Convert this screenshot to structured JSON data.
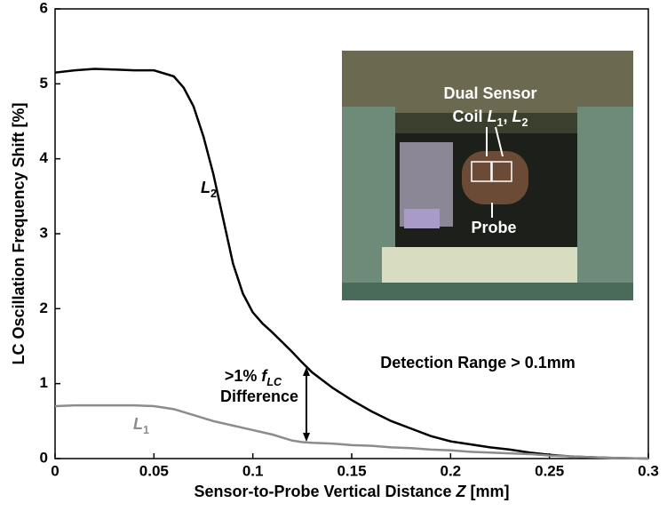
{
  "chart_data": {
    "type": "line",
    "xlabel": [
      {
        "text": "Sensor-to-Probe Vertical Distance "
      },
      {
        "text": "Z",
        "style": "italic"
      },
      {
        "text": " [mm]"
      }
    ],
    "ylabel": "LC Oscillation Frequency Shift [%]",
    "x": [
      0,
      0.01,
      0.02,
      0.03,
      0.04,
      0.05,
      0.06,
      0.065,
      0.07,
      0.075,
      0.08,
      0.085,
      0.09,
      0.095,
      0.1,
      0.105,
      0.11,
      0.115,
      0.12,
      0.125,
      0.13,
      0.14,
      0.15,
      0.16,
      0.17,
      0.18,
      0.19,
      0.2,
      0.21,
      0.22,
      0.23,
      0.24,
      0.25,
      0.26,
      0.27,
      0.28,
      0.29,
      0.3
    ],
    "series": [
      {
        "name": [
          {
            "text": "L",
            "style": "italic"
          },
          {
            "text": "2",
            "style": "sub"
          }
        ],
        "color": "#000000",
        "values": [
          5.15,
          5.18,
          5.2,
          5.19,
          5.18,
          5.18,
          5.1,
          4.95,
          4.7,
          4.3,
          3.8,
          3.2,
          2.6,
          2.2,
          1.95,
          1.8,
          1.68,
          1.55,
          1.42,
          1.28,
          1.15,
          0.95,
          0.78,
          0.63,
          0.5,
          0.4,
          0.3,
          0.23,
          0.19,
          0.15,
          0.12,
          0.08,
          0.05,
          0.03,
          0.02,
          0.01,
          0.005,
          0
        ]
      },
      {
        "name": [
          {
            "text": "L",
            "style": "italic"
          },
          {
            "text": "1",
            "style": "sub"
          }
        ],
        "color": "#8c8c8c",
        "values": [
          0.7,
          0.71,
          0.71,
          0.71,
          0.71,
          0.7,
          0.66,
          0.62,
          0.58,
          0.54,
          0.5,
          0.47,
          0.44,
          0.41,
          0.38,
          0.35,
          0.32,
          0.28,
          0.24,
          0.22,
          0.21,
          0.2,
          0.18,
          0.17,
          0.15,
          0.14,
          0.12,
          0.11,
          0.09,
          0.08,
          0.07,
          0.06,
          0.04,
          0.03,
          0.02,
          0.01,
          0.005,
          0
        ]
      }
    ],
    "xlim": [
      0,
      0.3
    ],
    "ylim": [
      0,
      6
    ],
    "xticks": [
      0,
      0.05,
      0.1,
      0.15,
      0.2,
      0.25,
      0.3
    ],
    "yticks": [
      0,
      1,
      2,
      3,
      4,
      5,
      6
    ],
    "annotations": [
      [
        {
          "text": ">1% "
        },
        {
          "text": "f",
          "style": "italic"
        },
        {
          "text": "LC",
          "style": "sub-italic"
        }
      ],
      [
        {
          "text": "Difference"
        }
      ],
      [
        {
          "text": "Detection Range > 0.1mm"
        }
      ]
    ],
    "inset_labels": [
      [
        {
          "text": "Dual Sensor"
        }
      ],
      [
        {
          "text": "Coil "
        },
        {
          "text": "L",
          "style": "italic"
        },
        {
          "text": "1",
          "style": "sub"
        },
        {
          "text": ", "
        },
        {
          "text": "L",
          "style": "italic"
        },
        {
          "text": "2",
          "style": "sub"
        }
      ],
      [
        {
          "text": "Probe"
        }
      ]
    ]
  }
}
